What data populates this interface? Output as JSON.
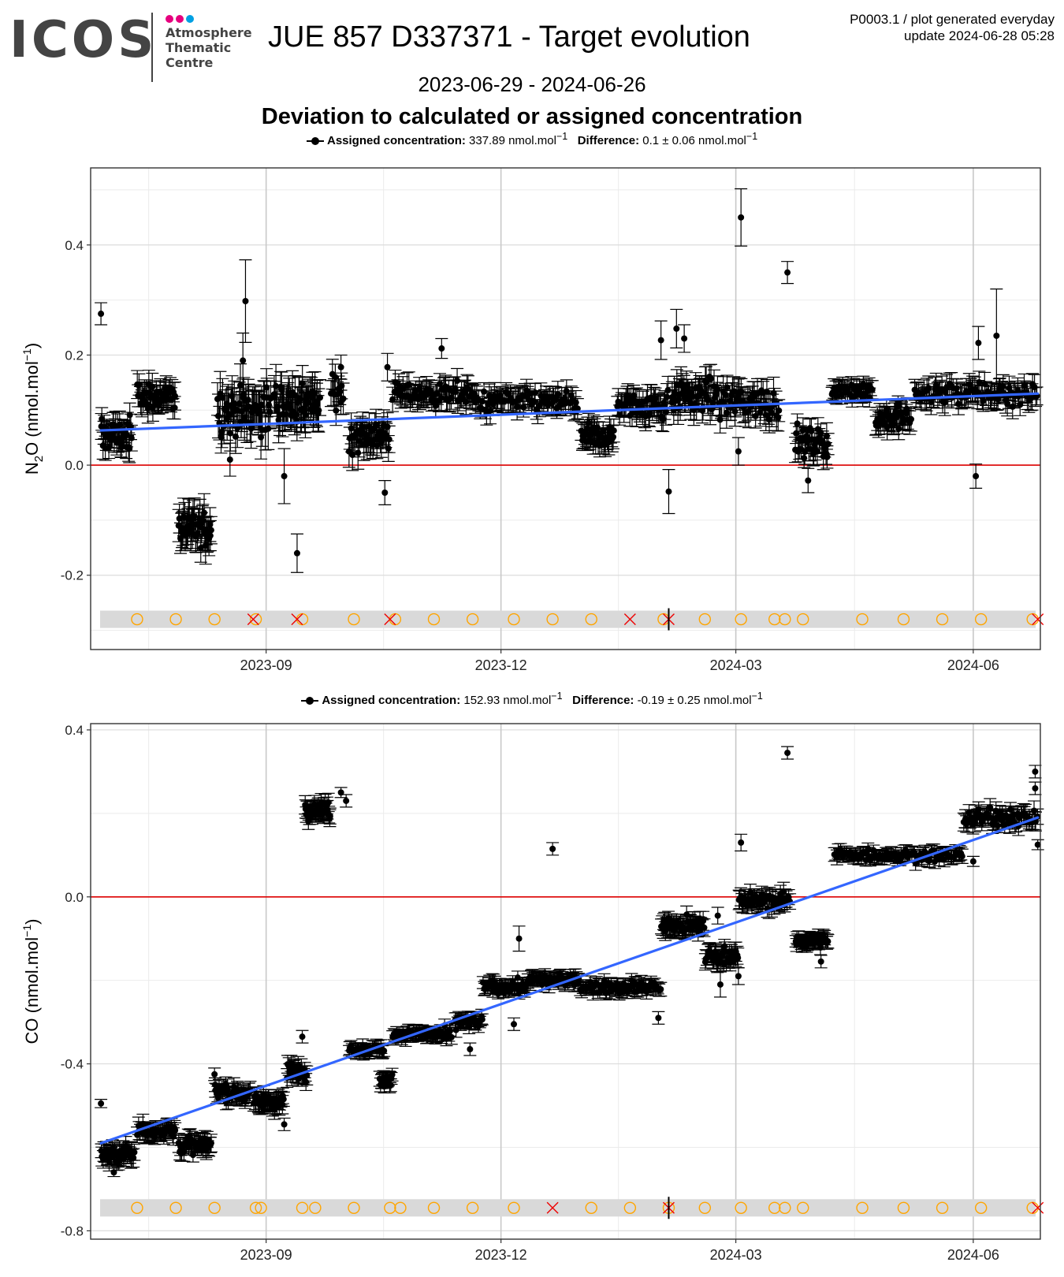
{
  "header": {
    "logo_text": "ICOS",
    "logo_sub": [
      "Atmosphere",
      "Thematic",
      "Centre"
    ],
    "logo_dot_colors": [
      "#e6007e",
      "#e6007e",
      "#00a0e3"
    ],
    "title": "JUE 857 D337371 - Target evolution",
    "meta_line1": "P0003.1 / plot generated everyday",
    "meta_line2": "update  2024-06-28 05:28",
    "date_range": "2023-06-29 - 2024-06-26",
    "chart_heading": "Deviation to calculated or assigned concentration"
  },
  "legend_top": {
    "assigned_label": "Assigned concentration:",
    "assigned_value": "337.89 nmol.mol",
    "assigned_sup": "−1",
    "difference_label": "Difference:",
    "difference_value": "0.1 ± 0.06 nmol.mol",
    "difference_sup": "−1"
  },
  "legend_bottom": {
    "assigned_label": "Assigned concentration:",
    "assigned_value": "152.93 nmol.mol",
    "assigned_sup": "−1",
    "difference_label": "Difference:",
    "difference_value": "-0.19 ± 0.25 nmol.mol",
    "difference_sup": "−1"
  },
  "colors": {
    "points": "#000000",
    "trend": "#3366ff",
    "zero_line": "#dd0000",
    "circle_marker": "#ffa500",
    "cross_marker": "#ee0000",
    "band": "#d9d9d9"
  },
  "chart_data": [
    {
      "type": "scatter",
      "gas": "N2O",
      "ylabel_main": "N",
      "ylabel_sub": "2",
      "ylabel_rest": "O (nmol.mol",
      "ylabel_sup": "−1",
      "ylabel_close": ")",
      "x_range": [
        "2023-06-29",
        "2024-06-26"
      ],
      "ylim": [
        -0.335,
        0.54
      ],
      "y_ticks": [
        "0.4",
        "0.2",
        "0.0",
        "-0.2"
      ],
      "y_tick_values": [
        0.4,
        0.2,
        0.0,
        -0.2
      ],
      "x_ticks": [
        "2023-09",
        "2023-12",
        "2024-03",
        "2024-06"
      ],
      "x_tick_dates": [
        "2023-09-01",
        "2023-12-01",
        "2024-03-01",
        "2024-06-01"
      ],
      "zero_line": 0.0,
      "trend": {
        "start": [
          "2023-06-29",
          0.063
        ],
        "end": [
          "2024-06-26",
          0.13
        ]
      },
      "clusters": [
        {
          "from": "2023-06-29",
          "to": "2023-07-11",
          "mean": 0.055,
          "spread": 0.03,
          "err": 0.022,
          "n": 40
        },
        {
          "from": "2023-07-13",
          "to": "2023-07-28",
          "mean": 0.125,
          "spread": 0.025,
          "err": 0.022,
          "n": 45
        },
        {
          "from": "2023-07-29",
          "to": "2023-08-11",
          "mean": -0.115,
          "spread": 0.035,
          "err": 0.03,
          "n": 40
        },
        {
          "from": "2023-08-13",
          "to": "2023-09-03",
          "mean": 0.1,
          "spread": 0.045,
          "err": 0.035,
          "n": 60
        },
        {
          "from": "2023-09-04",
          "to": "2023-09-22",
          "mean": 0.11,
          "spread": 0.04,
          "err": 0.035,
          "n": 55
        },
        {
          "from": "2023-09-26",
          "to": "2023-10-01",
          "mean": 0.13,
          "spread": 0.03,
          "err": 0.025,
          "n": 12
        },
        {
          "from": "2023-10-03",
          "to": "2023-10-19",
          "mean": 0.055,
          "spread": 0.03,
          "err": 0.025,
          "n": 45
        },
        {
          "from": "2023-10-20",
          "to": "2023-11-20",
          "mean": 0.13,
          "spread": 0.02,
          "err": 0.02,
          "n": 70
        },
        {
          "from": "2023-11-20",
          "to": "2023-12-31",
          "mean": 0.115,
          "spread": 0.02,
          "err": 0.02,
          "n": 80
        },
        {
          "from": "2024-01-01",
          "to": "2024-01-14",
          "mean": 0.05,
          "spread": 0.025,
          "err": 0.02,
          "n": 40
        },
        {
          "from": "2024-01-15",
          "to": "2024-02-04",
          "mean": 0.11,
          "spread": 0.025,
          "err": 0.022,
          "n": 50
        },
        {
          "from": "2024-02-05",
          "to": "2024-02-22",
          "mean": 0.125,
          "spread": 0.03,
          "err": 0.025,
          "n": 50
        },
        {
          "from": "2024-02-22",
          "to": "2024-03-18",
          "mean": 0.115,
          "spread": 0.03,
          "err": 0.025,
          "n": 60
        },
        {
          "from": "2024-03-24",
          "to": "2024-04-06",
          "mean": 0.04,
          "spread": 0.025,
          "err": 0.02,
          "n": 40
        },
        {
          "from": "2024-04-07",
          "to": "2024-04-23",
          "mean": 0.135,
          "spread": 0.015,
          "err": 0.015,
          "n": 40
        },
        {
          "from": "2024-04-24",
          "to": "2024-05-08",
          "mean": 0.085,
          "spread": 0.02,
          "err": 0.02,
          "n": 40
        },
        {
          "from": "2024-05-09",
          "to": "2024-06-26",
          "mean": 0.13,
          "spread": 0.02,
          "err": 0.02,
          "n": 95
        }
      ],
      "outliers": [
        {
          "date": "2023-06-29",
          "y": 0.275,
          "err": 0.02
        },
        {
          "date": "2023-08-24",
          "y": 0.298,
          "err": 0.075
        },
        {
          "date": "2023-08-23",
          "y": 0.19,
          "err": 0.05
        },
        {
          "date": "2023-08-18",
          "y": 0.01,
          "err": 0.03
        },
        {
          "date": "2023-09-08",
          "y": -0.02,
          "err": 0.05
        },
        {
          "date": "2023-09-13",
          "y": -0.16,
          "err": 0.035
        },
        {
          "date": "2023-09-30",
          "y": 0.178,
          "err": 0.022
        },
        {
          "date": "2023-10-17",
          "y": -0.05,
          "err": 0.022
        },
        {
          "date": "2023-10-18",
          "y": 0.178,
          "err": 0.025
        },
        {
          "date": "2023-11-08",
          "y": 0.212,
          "err": 0.018
        },
        {
          "date": "2024-02-01",
          "y": 0.227,
          "err": 0.035
        },
        {
          "date": "2024-02-04",
          "y": -0.048,
          "err": 0.04
        },
        {
          "date": "2024-02-07",
          "y": 0.248,
          "err": 0.035
        },
        {
          "date": "2024-02-10",
          "y": 0.23,
          "err": 0.025
        },
        {
          "date": "2024-03-03",
          "y": 0.45,
          "err": 0.052
        },
        {
          "date": "2024-03-02",
          "y": 0.025,
          "err": 0.025
        },
        {
          "date": "2024-03-21",
          "y": 0.35,
          "err": 0.02
        },
        {
          "date": "2024-03-29",
          "y": -0.028,
          "err": 0.022
        },
        {
          "date": "2024-06-02",
          "y": -0.02,
          "err": 0.022
        },
        {
          "date": "2024-06-03",
          "y": 0.222,
          "err": 0.03
        },
        {
          "date": "2024-06-10",
          "y": 0.235,
          "err": 0.085
        }
      ],
      "flag_band_y": -0.28,
      "circle_markers": [
        "2023-07-13",
        "2023-07-28",
        "2023-08-12",
        "2023-08-28",
        "2023-09-15",
        "2023-10-05",
        "2023-10-21",
        "2023-11-05",
        "2023-11-20",
        "2023-12-06",
        "2023-12-21",
        "2024-01-05",
        "2024-02-02",
        "2024-02-18",
        "2024-03-03",
        "2024-03-16",
        "2024-03-20",
        "2024-03-27",
        "2024-04-19",
        "2024-05-05",
        "2024-05-20",
        "2024-06-04",
        "2024-06-24"
      ],
      "cross_markers": [
        "2023-08-27",
        "2023-09-13",
        "2023-10-19",
        "2024-01-20",
        "2024-02-04",
        "2024-06-26"
      ],
      "event_lines": [
        "2024-02-04"
      ]
    },
    {
      "type": "scatter",
      "gas": "CO",
      "ylabel_main": "CO",
      "ylabel_sub": "",
      "ylabel_rest": " (nmol.mol",
      "ylabel_sup": "−1",
      "ylabel_close": ")",
      "x_range": [
        "2023-06-29",
        "2024-06-26"
      ],
      "ylim": [
        -0.82,
        0.415
      ],
      "y_ticks": [
        "0.4",
        "0.0",
        "-0.4",
        "-0.8"
      ],
      "y_tick_values": [
        0.4,
        0.0,
        -0.4,
        -0.8
      ],
      "x_ticks": [
        "2023-09",
        "2023-12",
        "2024-03",
        "2024-06"
      ],
      "x_tick_dates": [
        "2023-09-01",
        "2023-12-01",
        "2024-03-01",
        "2024-06-01"
      ],
      "zero_line": 0.0,
      "trend": {
        "start": [
          "2023-06-29",
          -0.59
        ],
        "end": [
          "2024-06-26",
          0.19
        ]
      },
      "clusters": [
        {
          "from": "2023-06-29",
          "to": "2023-07-12",
          "mean": -0.615,
          "spread": 0.02,
          "err": 0.02,
          "n": 40
        },
        {
          "from": "2023-07-13",
          "to": "2023-07-28",
          "mean": -0.56,
          "spread": 0.02,
          "err": 0.02,
          "n": 40
        },
        {
          "from": "2023-07-29",
          "to": "2023-08-11",
          "mean": -0.595,
          "spread": 0.02,
          "err": 0.02,
          "n": 40
        },
        {
          "from": "2023-08-12",
          "to": "2023-08-26",
          "mean": -0.47,
          "spread": 0.02,
          "err": 0.02,
          "n": 40
        },
        {
          "from": "2023-08-27",
          "to": "2023-09-08",
          "mean": -0.49,
          "spread": 0.02,
          "err": 0.02,
          "n": 40
        },
        {
          "from": "2023-09-09",
          "to": "2023-09-17",
          "mean": -0.42,
          "spread": 0.02,
          "err": 0.02,
          "n": 25
        },
        {
          "from": "2023-09-16",
          "to": "2023-09-26",
          "mean": 0.21,
          "spread": 0.02,
          "err": 0.02,
          "n": 40
        },
        {
          "from": "2023-10-03",
          "to": "2023-10-17",
          "mean": -0.365,
          "spread": 0.012,
          "err": 0.015,
          "n": 40
        },
        {
          "from": "2023-10-15",
          "to": "2023-10-20",
          "mean": -0.44,
          "spread": 0.015,
          "err": 0.015,
          "n": 20
        },
        {
          "from": "2023-10-20",
          "to": "2023-11-12",
          "mean": -0.33,
          "spread": 0.015,
          "err": 0.015,
          "n": 60
        },
        {
          "from": "2023-11-13",
          "to": "2023-11-24",
          "mean": -0.3,
          "spread": 0.015,
          "err": 0.015,
          "n": 30
        },
        {
          "from": "2023-11-24",
          "to": "2023-12-11",
          "mean": -0.215,
          "spread": 0.015,
          "err": 0.015,
          "n": 50
        },
        {
          "from": "2023-12-11",
          "to": "2024-01-01",
          "mean": -0.2,
          "spread": 0.015,
          "err": 0.015,
          "n": 55
        },
        {
          "from": "2024-01-01",
          "to": "2024-02-01",
          "mean": -0.215,
          "spread": 0.015,
          "err": 0.015,
          "n": 70
        },
        {
          "from": "2024-02-01",
          "to": "2024-02-18",
          "mean": -0.07,
          "spread": 0.02,
          "err": 0.02,
          "n": 50
        },
        {
          "from": "2024-02-18",
          "to": "2024-03-02",
          "mean": -0.14,
          "spread": 0.02,
          "err": 0.02,
          "n": 40
        },
        {
          "from": "2024-03-02",
          "to": "2024-03-22",
          "mean": -0.01,
          "spread": 0.02,
          "err": 0.02,
          "n": 50
        },
        {
          "from": "2024-03-24",
          "to": "2024-04-06",
          "mean": -0.105,
          "spread": 0.015,
          "err": 0.015,
          "n": 40
        },
        {
          "from": "2024-04-08",
          "to": "2024-05-28",
          "mean": 0.1,
          "spread": 0.015,
          "err": 0.015,
          "n": 100
        },
        {
          "from": "2024-05-28",
          "to": "2024-06-26",
          "mean": 0.19,
          "spread": 0.02,
          "err": 0.02,
          "n": 65
        }
      ],
      "outliers": [
        {
          "date": "2023-06-29",
          "y": -0.495,
          "err": 0.01
        },
        {
          "date": "2023-07-04",
          "y": -0.66,
          "err": 0.01
        },
        {
          "date": "2023-08-12",
          "y": -0.425,
          "err": 0.015
        },
        {
          "date": "2023-09-08",
          "y": -0.545,
          "err": 0.015
        },
        {
          "date": "2023-09-15",
          "y": -0.335,
          "err": 0.015
        },
        {
          "date": "2023-09-30",
          "y": 0.25,
          "err": 0.012
        },
        {
          "date": "2023-10-02",
          "y": 0.23,
          "err": 0.015
        },
        {
          "date": "2023-11-19",
          "y": -0.365,
          "err": 0.015
        },
        {
          "date": "2023-12-06",
          "y": -0.305,
          "err": 0.015
        },
        {
          "date": "2023-12-08",
          "y": -0.1,
          "err": 0.03
        },
        {
          "date": "2023-12-21",
          "y": 0.115,
          "err": 0.015
        },
        {
          "date": "2024-01-31",
          "y": -0.29,
          "err": 0.015
        },
        {
          "date": "2024-02-23",
          "y": -0.045,
          "err": 0.02
        },
        {
          "date": "2024-02-24",
          "y": -0.21,
          "err": 0.03
        },
        {
          "date": "2024-03-03",
          "y": 0.13,
          "err": 0.02
        },
        {
          "date": "2024-03-02",
          "y": -0.19,
          "err": 0.02
        },
        {
          "date": "2024-03-21",
          "y": 0.345,
          "err": 0.015
        },
        {
          "date": "2024-04-03",
          "y": -0.155,
          "err": 0.015
        },
        {
          "date": "2024-06-01",
          "y": 0.085,
          "err": 0.012
        },
        {
          "date": "2024-06-25",
          "y": 0.3,
          "err": 0.015
        },
        {
          "date": "2024-06-25",
          "y": 0.26,
          "err": 0.015
        },
        {
          "date": "2024-06-26",
          "y": 0.125,
          "err": 0.012
        }
      ],
      "flag_band_y": -0.745,
      "circle_markers": [
        "2023-07-13",
        "2023-07-28",
        "2023-08-12",
        "2023-08-28",
        "2023-08-30",
        "2023-09-15",
        "2023-09-20",
        "2023-10-05",
        "2023-10-19",
        "2023-10-23",
        "2023-11-05",
        "2023-11-20",
        "2023-12-06",
        "2024-01-05",
        "2024-01-20",
        "2024-02-04",
        "2024-02-18",
        "2024-03-03",
        "2024-03-16",
        "2024-03-20",
        "2024-03-27",
        "2024-04-19",
        "2024-05-05",
        "2024-05-20",
        "2024-06-04",
        "2024-06-24"
      ],
      "cross_markers": [
        "2023-12-21",
        "2024-02-04",
        "2024-06-26"
      ],
      "event_lines": [
        "2024-02-04"
      ]
    }
  ]
}
